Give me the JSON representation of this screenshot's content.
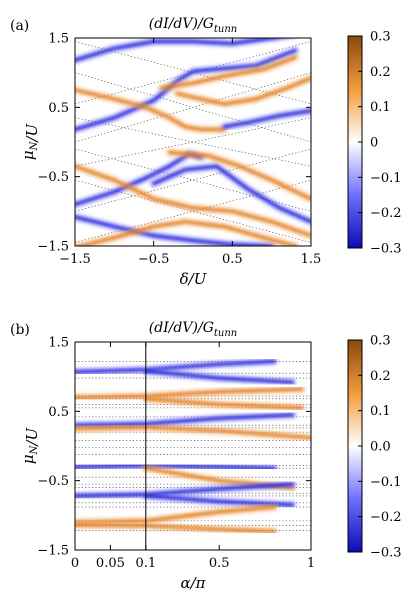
{
  "chart_data": [
    {
      "type": "heatmap",
      "panel_label": "(a)",
      "title": "(dI/dV)/G_tunn",
      "xlabel": "δ/U",
      "ylabel": "μ_N/U",
      "xlim": [
        -1.5,
        1.5
      ],
      "ylim": [
        -1.5,
        1.5
      ],
      "xticks": [
        -1.5,
        -0.5,
        0.5,
        1.5
      ],
      "xtick_labels": [
        "−1.5",
        "−0.5",
        "0.5",
        "1.5"
      ],
      "yticks": [
        -1.5,
        -0.5,
        0.5,
        1.5
      ],
      "ytick_labels": [
        "−1.5",
        "−0.5",
        "0.5",
        "1.5"
      ],
      "colorbar": {
        "range": [
          -0.3,
          0.3
        ],
        "ticks": [
          0.3,
          0.2,
          0.1,
          0,
          -0.1,
          -0.2,
          -0.3
        ],
        "tick_labels": [
          "0.3",
          "0.2",
          "0.1",
          "0",
          "−0.1",
          "−0.2",
          "−0.3"
        ],
        "colors": [
          "#0b0bb5",
          "#6f6fff",
          "#ffffff",
          "#f39a3a",
          "#8a4a10"
        ]
      },
      "series": [
        {
          "sign": "negative",
          "points": [
            [
              -1.5,
              1.18
            ],
            [
              -1.0,
              1.35
            ],
            [
              -0.5,
              1.45
            ],
            [
              0.0,
              1.45
            ],
            [
              0.5,
              1.42
            ],
            [
              1.0,
              1.5
            ],
            [
              1.3,
              1.55
            ]
          ]
        },
        {
          "sign": "negative",
          "points": [
            [
              -1.5,
              0.18
            ],
            [
              -1.0,
              0.35
            ],
            [
              -0.5,
              0.6
            ],
            [
              -0.2,
              0.88
            ],
            [
              0.0,
              1.02
            ],
            [
              0.3,
              1.05
            ],
            [
              0.8,
              1.1
            ],
            [
              1.3,
              1.32
            ]
          ]
        },
        {
          "sign": "positive",
          "points": [
            [
              -1.5,
              0.75
            ],
            [
              -1.0,
              0.62
            ],
            [
              -0.6,
              0.5
            ],
            [
              -0.3,
              0.35
            ],
            [
              -0.1,
              0.22
            ],
            [
              0.1,
              0.18
            ],
            [
              0.4,
              0.18
            ]
          ]
        },
        {
          "sign": "positive",
          "points": [
            [
              -0.4,
              0.78
            ],
            [
              0.0,
              0.85
            ],
            [
              0.4,
              0.95
            ],
            [
              0.9,
              1.05
            ],
            [
              1.3,
              1.22
            ]
          ]
        },
        {
          "sign": "positive",
          "points": [
            [
              -0.2,
              0.7
            ],
            [
              0.1,
              0.62
            ],
            [
              0.4,
              0.55
            ],
            [
              0.8,
              0.62
            ],
            [
              1.2,
              0.78
            ],
            [
              1.5,
              0.92
            ]
          ]
        },
        {
          "sign": "negative",
          "points": [
            [
              0.4,
              0.22
            ],
            [
              0.7,
              0.28
            ],
            [
              1.1,
              0.38
            ],
            [
              1.5,
              0.45
            ]
          ]
        },
        {
          "sign": "negative",
          "points": [
            [
              -1.5,
              -0.9
            ],
            [
              -1.0,
              -0.72
            ],
            [
              -0.6,
              -0.52
            ],
            [
              -0.3,
              -0.35
            ],
            [
              -0.05,
              -0.17
            ],
            [
              0.1,
              -0.22
            ]
          ]
        },
        {
          "sign": "negative",
          "points": [
            [
              -0.5,
              -0.6
            ],
            [
              -0.1,
              -0.4
            ],
            [
              0.3,
              -0.35
            ],
            [
              0.7,
              -0.68
            ],
            [
              1.1,
              -0.95
            ],
            [
              1.5,
              -1.15
            ]
          ]
        },
        {
          "sign": "positive",
          "points": [
            [
              -1.5,
              -0.35
            ],
            [
              -1.0,
              -0.55
            ],
            [
              -0.5,
              -0.82
            ],
            [
              0.0,
              -0.95
            ],
            [
              0.5,
              -1.0
            ],
            [
              1.0,
              -1.15
            ],
            [
              1.5,
              -1.35
            ]
          ]
        },
        {
          "sign": "positive",
          "points": [
            [
              -0.3,
              -0.15
            ],
            [
              0.2,
              -0.2
            ],
            [
              0.6,
              -0.35
            ],
            [
              1.0,
              -0.55
            ],
            [
              1.5,
              -0.82
            ]
          ]
        },
        {
          "sign": "negative",
          "points": [
            [
              -1.5,
              -1.08
            ],
            [
              -1.0,
              -1.22
            ],
            [
              -0.5,
              -1.35
            ],
            [
              0.0,
              -1.42
            ],
            [
              0.5,
              -1.48
            ],
            [
              1.0,
              -1.5
            ]
          ]
        },
        {
          "sign": "positive",
          "points": [
            [
              -1.5,
              -1.52
            ],
            [
              -1.0,
              -1.38
            ],
            [
              -0.5,
              -1.22
            ],
            [
              -0.1,
              -1.15
            ],
            [
              0.4,
              -1.22
            ],
            [
              0.9,
              -1.38
            ],
            [
              1.3,
              -1.5
            ]
          ]
        }
      ],
      "dotted_lines": [
        [
          [
            -1.5,
            1.45
          ],
          [
            1.5,
            0.55
          ]
        ],
        [
          [
            -1.5,
            0.55
          ],
          [
            1.5,
            1.45
          ]
        ],
        [
          [
            -1.5,
            1.0
          ],
          [
            1.5,
            0.0
          ]
        ],
        [
          [
            -1.5,
            0.0
          ],
          [
            1.5,
            1.0
          ]
        ],
        [
          [
            -1.5,
            0.35
          ],
          [
            1.5,
            -0.35
          ]
        ],
        [
          [
            -1.5,
            -0.35
          ],
          [
            1.5,
            0.35
          ]
        ],
        [
          [
            -1.5,
            -0.1
          ],
          [
            1.5,
            -1.0
          ]
        ],
        [
          [
            -1.5,
            -1.0
          ],
          [
            1.5,
            -0.1
          ]
        ],
        [
          [
            -1.5,
            -0.55
          ],
          [
            1.5,
            -1.45
          ]
        ],
        [
          [
            -1.5,
            -1.45
          ],
          [
            1.5,
            -0.55
          ]
        ]
      ]
    },
    {
      "type": "heatmap",
      "panel_label": "(b)",
      "title": "(dI/dV)/G_tunn",
      "xlabel": "α/π",
      "ylabel": "μ_N/U",
      "xlim": [
        0,
        1
      ],
      "ylim": [
        -1.5,
        1.5
      ],
      "x_scale": "piecewise-linear: [0, 0.1] occupies 30% of axis width, [0.1, 1] the remaining 70%",
      "xticks": [
        0,
        0.05,
        0.1,
        0.5,
        1
      ],
      "xtick_labels": [
        "0",
        "0.05",
        "0.1",
        "0.5",
        "1"
      ],
      "yticks": [
        -1.5,
        -0.5,
        0.5,
        1.5
      ],
      "ytick_labels": [
        "−1.5",
        "−0.5",
        "0.5",
        "1.5"
      ],
      "vertical_line_x": 0.1,
      "colorbar": {
        "range": [
          -0.3,
          0.3
        ],
        "ticks": [
          0.3,
          0.2,
          0.1,
          0.0,
          -0.1,
          -0.2,
          -0.3
        ],
        "tick_labels": [
          "0.3",
          "0.2",
          "0.1",
          "0.0",
          "−0.1",
          "−0.2",
          "−0.3"
        ],
        "colors": [
          "#0b0bb5",
          "#6f6fff",
          "#ffffff",
          "#f39a3a",
          "#8a4a10"
        ]
      },
      "series": [
        {
          "sign": "negative",
          "points": [
            [
              0.0,
              1.07
            ],
            [
              0.1,
              1.1
            ],
            [
              0.5,
              1.18
            ],
            [
              0.8,
              1.22
            ]
          ]
        },
        {
          "sign": "negative",
          "points": [
            [
              0.1,
              1.08
            ],
            [
              0.5,
              0.98
            ],
            [
              0.9,
              0.92
            ]
          ]
        },
        {
          "sign": "positive",
          "points": [
            [
              0.0,
              0.7
            ],
            [
              0.1,
              0.72
            ],
            [
              0.5,
              0.78
            ],
            [
              0.95,
              0.82
            ]
          ]
        },
        {
          "sign": "positive",
          "points": [
            [
              0.1,
              0.68
            ],
            [
              0.5,
              0.6
            ],
            [
              0.95,
              0.55
            ]
          ]
        },
        {
          "sign": "negative",
          "points": [
            [
              0.0,
              0.3
            ],
            [
              0.1,
              0.32
            ],
            [
              0.5,
              0.4
            ],
            [
              0.9,
              0.45
            ]
          ]
        },
        {
          "sign": "positive",
          "points": [
            [
              0.0,
              0.25
            ],
            [
              0.1,
              0.27
            ],
            [
              0.5,
              0.22
            ],
            [
              1.0,
              0.12
            ]
          ]
        },
        {
          "sign": "negative",
          "points": [
            [
              0.0,
              -0.3
            ],
            [
              0.1,
              -0.28
            ],
            [
              0.5,
              -0.3
            ],
            [
              0.8,
              -0.32
            ]
          ]
        },
        {
          "sign": "positive",
          "points": [
            [
              0.1,
              -0.32
            ],
            [
              0.5,
              -0.5
            ],
            [
              0.9,
              -0.6
            ]
          ]
        },
        {
          "sign": "negative",
          "points": [
            [
              0.0,
              -0.72
            ],
            [
              0.1,
              -0.7
            ],
            [
              0.5,
              -0.62
            ],
            [
              0.9,
              -0.55
            ]
          ]
        },
        {
          "sign": "negative",
          "points": [
            [
              0.1,
              -0.72
            ],
            [
              0.5,
              -0.8
            ],
            [
              0.9,
              -0.85
            ]
          ]
        },
        {
          "sign": "positive",
          "points": [
            [
              0.0,
              -1.1
            ],
            [
              0.1,
              -1.08
            ],
            [
              0.5,
              -0.95
            ],
            [
              0.8,
              -0.88
            ]
          ]
        },
        {
          "sign": "positive",
          "points": [
            [
              0.0,
              -1.14
            ],
            [
              0.1,
              -1.15
            ],
            [
              0.5,
              -1.2
            ],
            [
              0.8,
              -1.23
            ]
          ]
        }
      ],
      "dotted_levels": [
        1.22,
        1.05,
        0.98,
        0.72,
        0.68,
        0.6,
        0.55,
        0.42,
        0.3,
        0.26,
        0.2,
        0.08,
        -0.02,
        -0.12,
        -0.28,
        -0.32,
        -0.45,
        -0.55,
        -0.6,
        -0.68,
        -0.72,
        -0.82,
        -0.88,
        -1.08,
        -1.15,
        -1.22
      ]
    }
  ]
}
